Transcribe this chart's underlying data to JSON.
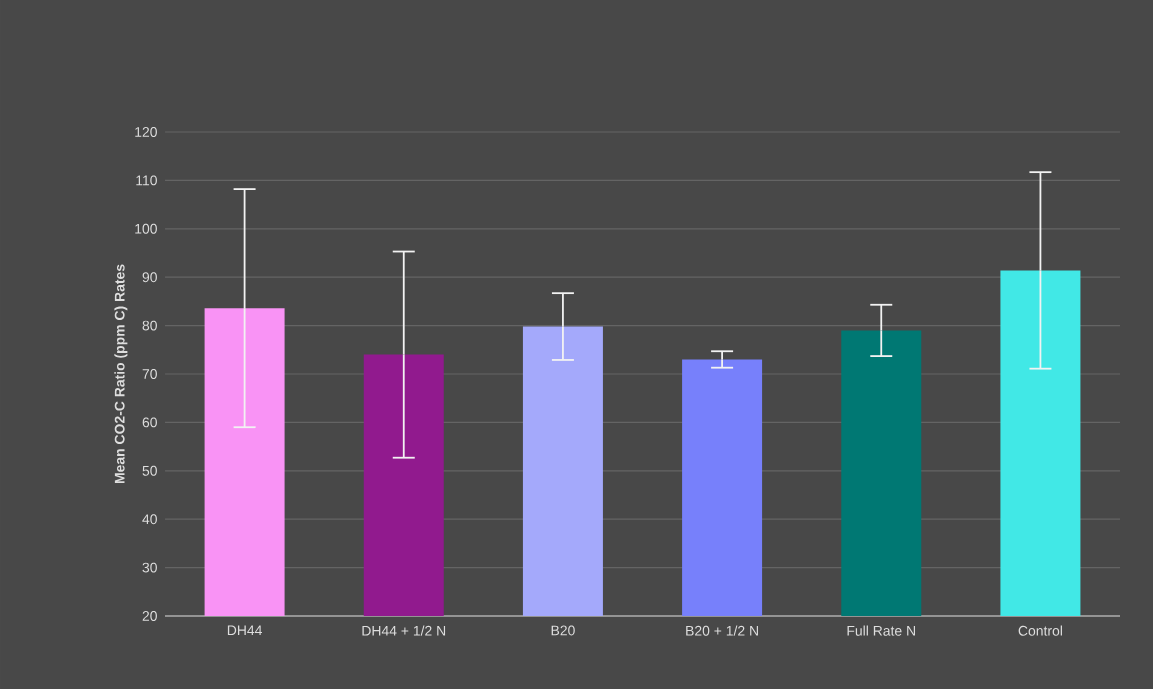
{
  "chart_data": {
    "type": "bar",
    "ylabel": "Mean CO2-C Ratio (ppm C) Rates",
    "categories": [
      "DH44",
      "DH44 + 1/2 N",
      "B20",
      "B20 + 1/2 N",
      "Full Rate N",
      "Control"
    ],
    "values": [
      83.6,
      74.0,
      79.8,
      73.0,
      79.0,
      91.4
    ],
    "errors": [
      24.6,
      21.3,
      6.9,
      1.7,
      5.3,
      20.3
    ],
    "colors": [
      "#f993f5",
      "#911a8e",
      "#a4a9fb",
      "#7780fb",
      "#007873",
      "#41e8e6"
    ],
    "ylim": [
      20,
      120
    ],
    "yticks": [
      20,
      30,
      40,
      50,
      60,
      70,
      80,
      90,
      100,
      110,
      120
    ],
    "grid": "y"
  }
}
